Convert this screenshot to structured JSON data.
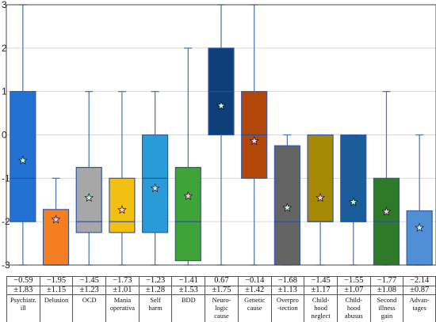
{
  "chart_data": {
    "type": "box",
    "ylim": [
      -3,
      3
    ],
    "yticks": [
      "-3",
      "-2",
      "-1",
      "0",
      "1",
      "2",
      "3"
    ],
    "series": [
      {
        "label": [
          "Psychiatr.",
          "ill"
        ],
        "mean": "−0.59",
        "sd": "±1.83",
        "mean_value": -0.59,
        "min": -3,
        "q1": -2,
        "median": -1,
        "q3": 1,
        "max": 3,
        "color": "#2272d4"
      },
      {
        "label": [
          "Delusion"
        ],
        "mean": "−1.95",
        "sd": "±1.15",
        "mean_value": -1.95,
        "min": -3,
        "q1": -3,
        "median": -3,
        "q3": -1.72,
        "max": -1,
        "color": "#f47f22"
      },
      {
        "label": [
          "OCD"
        ],
        "mean": "−1.45",
        "sd": "±1.23",
        "mean_value": -1.45,
        "min": -3,
        "q1": -2.25,
        "median": -2,
        "q3": -0.75,
        "max": 1,
        "color": "#a7a7a7"
      },
      {
        "label": [
          "Mania",
          "operativa"
        ],
        "mean": "−1.73",
        "sd": "±1.01",
        "mean_value": -1.73,
        "min": -3,
        "q1": -2.25,
        "median": -2,
        "q3": -1,
        "max": 1,
        "color": "#f2c012"
      },
      {
        "label": [
          "Self",
          "harm"
        ],
        "mean": "−1.23",
        "sd": "±1.28",
        "mean_value": -1.23,
        "min": -3,
        "q1": -2.25,
        "median": -1,
        "q3": 0,
        "max": 1,
        "color": "#2b9ad9"
      },
      {
        "label": [
          "BDD"
        ],
        "mean": "−1.41",
        "sd": "±1.53",
        "mean_value": -1.41,
        "min": -3,
        "q1": -2.9,
        "median": -2,
        "q3": -0.75,
        "max": 2,
        "color": "#3fa437"
      },
      {
        "label": [
          "Neuro-",
          "logic",
          "cause"
        ],
        "mean": "0.67",
        "sd": "±1.75",
        "mean_value": 0.67,
        "min": -3,
        "q1": 0,
        "median": 1,
        "q3": 2,
        "max": 3,
        "color": "#0d3f78"
      },
      {
        "label": [
          "Genetic",
          "cause"
        ],
        "mean": "−0.14",
        "sd": "±1.42",
        "mean_value": -0.14,
        "min": -3,
        "q1": -1,
        "median": 0,
        "q3": 1,
        "max": 3,
        "color": "#b1470b"
      },
      {
        "label": [
          "Overpro",
          "-tection"
        ],
        "mean": "−1.68",
        "sd": "±1.13",
        "mean_value": -1.68,
        "min": -3,
        "q1": -3,
        "median": -2,
        "q3": -0.25,
        "max": 0,
        "color": "#646464"
      },
      {
        "label": [
          "Child-",
          "hood",
          "neglect"
        ],
        "mean": "−1.45",
        "sd": "±1.17",
        "mean_value": -1.45,
        "min": -3,
        "q1": -2,
        "median": -2,
        "q3": 0,
        "max": 0,
        "color": "#a68a04"
      },
      {
        "label": [
          "Child-",
          "hood",
          "abusus"
        ],
        "mean": "−1.55",
        "sd": "±1.07",
        "mean_value": -1.55,
        "min": -3,
        "q1": -2,
        "median": -2,
        "q3": 0,
        "max": 0,
        "color": "#1b5d98"
      },
      {
        "label": [
          "Second",
          "illness",
          "gain"
        ],
        "mean": "−1.77",
        "sd": "±1.08",
        "mean_value": -1.77,
        "min": -3,
        "q1": -3,
        "median": -2,
        "q3": -1,
        "max": 1,
        "color": "#2f7a2a"
      },
      {
        "label": [
          "Advan-",
          "tages"
        ],
        "mean": "−2.14",
        "sd": "±0.87",
        "mean_value": -2.14,
        "min": -3,
        "q1": -3,
        "median": -3,
        "q3": -1.75,
        "max": 0,
        "color": "#4f8fd6"
      }
    ]
  }
}
